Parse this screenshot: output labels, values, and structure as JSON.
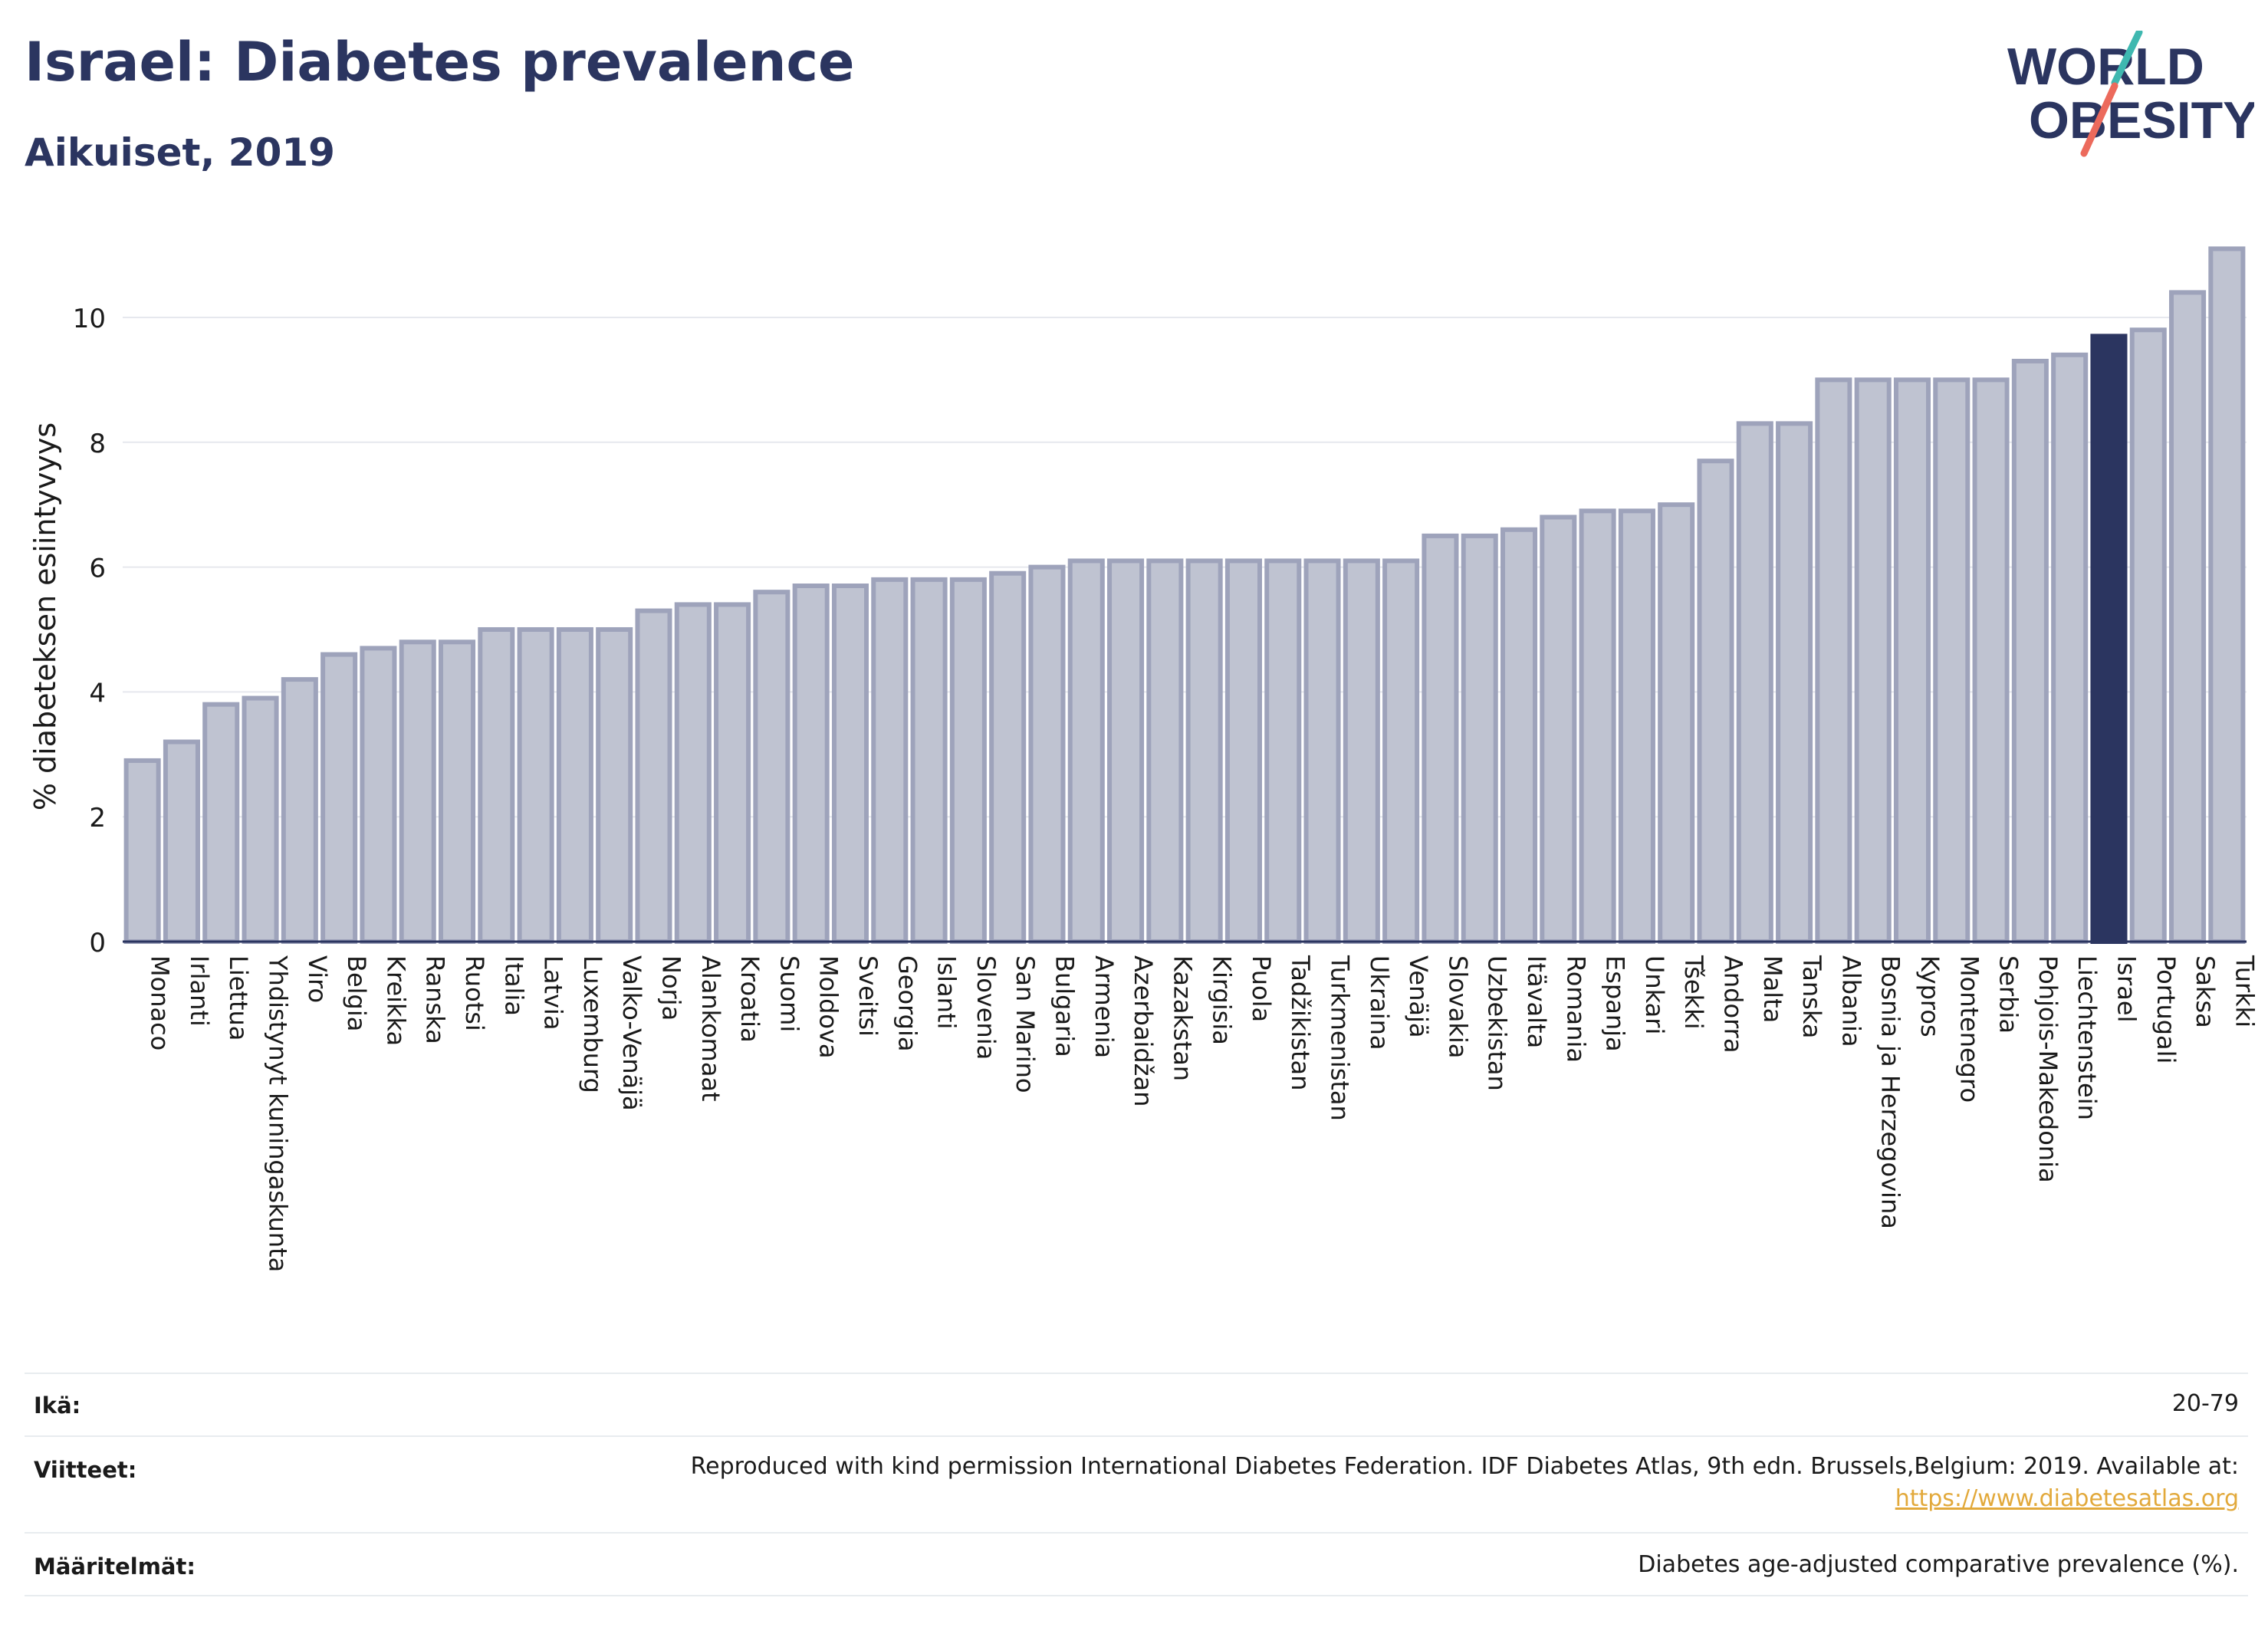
{
  "header": {
    "title": "Israel: Diabetes prevalence",
    "subtitle": "Aikuiset, 2019",
    "logo_line1": "WORLD",
    "logo_line2": "OBESITY"
  },
  "colors": {
    "bar": "#bfc3d1",
    "bar_stroke": "#9ea3bb",
    "highlight": "#2b3560",
    "text": "#2b3560",
    "link": "#e2a93b"
  },
  "chart_data": {
    "type": "bar",
    "ylabel": "% diabeteksen esiintyvyys",
    "ylim": [
      0,
      11.4
    ],
    "yticks": [
      0,
      2,
      4,
      6,
      8,
      10
    ],
    "grid": true,
    "highlight": "Israel",
    "categories": [
      "Monaco",
      "Irlanti",
      "Liettua",
      "Yhdistynyt kuningaskunta",
      "Viro",
      "Belgia",
      "Kreikka",
      "Ranska",
      "Ruotsi",
      "Italia",
      "Latvia",
      "Luxemburg",
      "Valko-Venäjä",
      "Norja",
      "Alankomaat",
      "Kroatia",
      "Suomi",
      "Moldova",
      "Sveitsi",
      "Georgia",
      "Islanti",
      "Slovenia",
      "San Marino",
      "Bulgaria",
      "Armenia",
      "Azerbaidžan",
      "Kazakstan",
      "Kirgisia",
      "Puola",
      "Tadžikistan",
      "Turkmenistan",
      "Ukraina",
      "Venäjä",
      "Slovakia",
      "Uzbekistan",
      "Itävalta",
      "Romania",
      "Espanja",
      "Unkari",
      "Tšekki",
      "Andorra",
      "Malta",
      "Tanska",
      "Albania",
      "Bosnia ja Herzegovina",
      "Kypros",
      "Montenegro",
      "Serbia",
      "Pohjois-Makedonia",
      "Liechtenstein",
      "Israel",
      "Portugali",
      "Saksa",
      "Turkki"
    ],
    "values": [
      2.9,
      3.2,
      3.8,
      3.9,
      4.2,
      4.6,
      4.7,
      4.8,
      4.8,
      5.0,
      5.0,
      5.0,
      5.0,
      5.3,
      5.4,
      5.4,
      5.6,
      5.7,
      5.7,
      5.8,
      5.8,
      5.8,
      5.9,
      6.0,
      6.1,
      6.1,
      6.1,
      6.1,
      6.1,
      6.1,
      6.1,
      6.1,
      6.1,
      6.5,
      6.5,
      6.6,
      6.8,
      6.9,
      6.9,
      7.0,
      7.7,
      8.3,
      8.3,
      9.0,
      9.0,
      9.0,
      9.0,
      9.0,
      9.3,
      9.4,
      9.7,
      9.8,
      10.4,
      11.1
    ]
  },
  "meta": {
    "age_label": "Ikä:",
    "age_value": "20-79",
    "refs_label": "Viitteet:",
    "refs_value": "Reproduced with kind permission International Diabetes Federation. IDF Diabetes Atlas, 9th edn. Brussels,Belgium: 2019. Available at:",
    "refs_link": "https://www.diabetesatlas.org",
    "defs_label": "Määritelmät:",
    "defs_value": "Diabetes age-adjusted comparative prevalence (%)."
  }
}
